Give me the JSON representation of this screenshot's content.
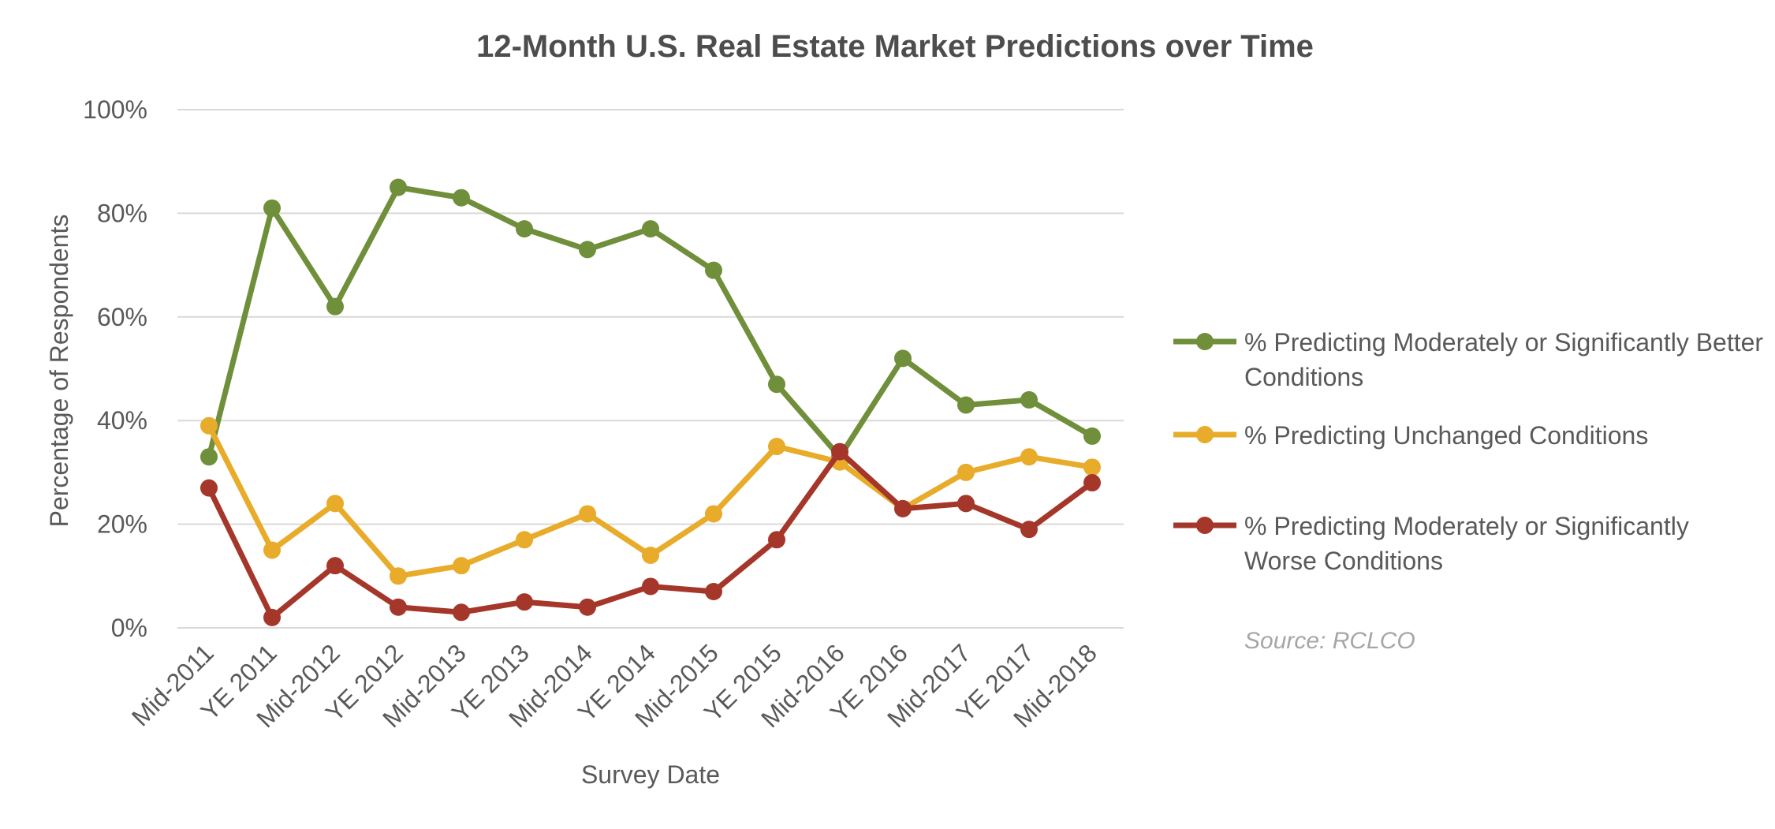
{
  "chart_data": {
    "type": "line",
    "title": "12-Month U.S. Real Estate Market Predictions over Time",
    "xlabel": "Survey Date",
    "ylabel": "Percentage of Respondents",
    "ylim": [
      0,
      100
    ],
    "yticks": [
      "0%",
      "20%",
      "40%",
      "60%",
      "80%",
      "100%"
    ],
    "grid": true,
    "legend_position": "right",
    "categories": [
      "Mid-2011",
      "YE 2011",
      "Mid-2012",
      "YE 2012",
      "Mid-2013",
      "YE 2013",
      "Mid-2014",
      "YE 2014",
      "Mid-2015",
      "YE 2015",
      "Mid-2016",
      "YE 2016",
      "Mid-2017",
      "YE 2017",
      "Mid-2018"
    ],
    "series": [
      {
        "name": "% Predicting Moderately or Significantly Better Conditions",
        "legend_lines": [
          "% Predicting Moderately or Significantly Better",
          "Conditions"
        ],
        "color": "#6f8f3a",
        "values": [
          33,
          81,
          62,
          85,
          83,
          77,
          73,
          77,
          69,
          47,
          33,
          52,
          43,
          44,
          37
        ]
      },
      {
        "name": "% Predicting Unchanged Conditions",
        "legend_lines": [
          "% Predicting Unchanged Conditions"
        ],
        "color": "#e8ab2a",
        "values": [
          39,
          15,
          24,
          10,
          12,
          17,
          22,
          14,
          22,
          35,
          32,
          23,
          30,
          33,
          31
        ]
      },
      {
        "name": "% Predicting Moderately or Significantly Worse Conditions",
        "legend_lines": [
          "% Predicting Moderately or Significantly",
          "Worse Conditions"
        ],
        "color": "#a5362a",
        "values": [
          27,
          2,
          12,
          4,
          3,
          5,
          4,
          8,
          7,
          17,
          34,
          23,
          24,
          19,
          28
        ]
      }
    ],
    "source": "Source: RCLCO"
  }
}
